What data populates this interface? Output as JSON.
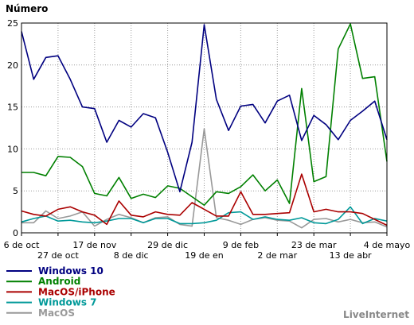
{
  "chart_data": {
    "type": "line",
    "ylabel": "Número",
    "ylim": [
      0,
      25
    ],
    "yticks": [
      0,
      5,
      10,
      15,
      20,
      25
    ],
    "grid": true,
    "legend_position": "bottom-left",
    "watermark": "LiveInternet",
    "x_tick_labels_upper": [
      "6 de oct",
      "17 de nov",
      "29 de dic",
      "9 de feb",
      "23 de mar",
      "4 de mayo"
    ],
    "x_tick_labels_lower": [
      "27 de oct",
      "8 de dic",
      "19 de en",
      "2 de mar",
      "13 de abr"
    ],
    "series": [
      {
        "name": "Windows 10",
        "color": "#000080",
        "values": [
          24.0,
          18.3,
          20.9,
          21.1,
          18.3,
          15.0,
          14.8,
          10.8,
          13.4,
          12.6,
          14.2,
          13.7,
          9.6,
          4.9,
          10.8,
          24.8,
          15.9,
          12.2,
          15.1,
          15.3,
          13.1,
          15.7,
          16.4,
          11.0,
          14.0,
          12.9,
          11.1,
          13.4,
          14.5,
          15.7,
          11.1
        ]
      },
      {
        "name": "Android",
        "color": "#008000",
        "values": [
          7.2,
          7.2,
          6.8,
          9.1,
          9.0,
          7.9,
          4.7,
          4.4,
          6.6,
          4.1,
          4.6,
          4.2,
          5.6,
          5.3,
          4.3,
          3.3,
          4.9,
          4.7,
          5.5,
          6.9,
          5.0,
          6.3,
          3.5,
          17.2,
          6.1,
          6.7,
          21.9,
          24.9,
          18.4,
          18.6,
          8.5
        ]
      },
      {
        "name": "MacOS/iPhone",
        "color": "#aa0000",
        "values": [
          2.6,
          2.2,
          2.0,
          2.8,
          3.1,
          2.5,
          2.1,
          1.0,
          3.8,
          2.1,
          1.9,
          2.5,
          2.2,
          2.1,
          3.6,
          2.8,
          2.0,
          2.0,
          4.9,
          2.2,
          2.2,
          2.3,
          2.4,
          7.0,
          2.5,
          2.8,
          2.5,
          2.5,
          2.3,
          1.6,
          0.9
        ]
      },
      {
        "name": "Windows 7",
        "color": "#009999",
        "values": [
          1.3,
          1.7,
          2.0,
          1.4,
          1.5,
          1.3,
          1.2,
          1.4,
          1.7,
          1.7,
          1.2,
          1.7,
          1.7,
          1.1,
          1.1,
          1.2,
          1.5,
          2.4,
          2.5,
          1.6,
          1.9,
          1.6,
          1.5,
          1.8,
          1.2,
          1.1,
          1.6,
          3.1,
          1.1,
          1.7,
          1.4
        ]
      },
      {
        "name": "MacOS",
        "color": "#999999",
        "values": [
          1.2,
          1.2,
          2.6,
          1.7,
          2.0,
          2.5,
          0.8,
          1.6,
          2.2,
          1.8,
          1.2,
          1.8,
          1.9,
          1.0,
          0.8,
          12.4,
          1.8,
          1.5,
          1.0,
          1.6,
          1.8,
          1.5,
          1.4,
          0.6,
          1.6,
          1.7,
          1.3,
          1.6,
          1.2,
          1.3,
          0.7
        ]
      }
    ]
  }
}
